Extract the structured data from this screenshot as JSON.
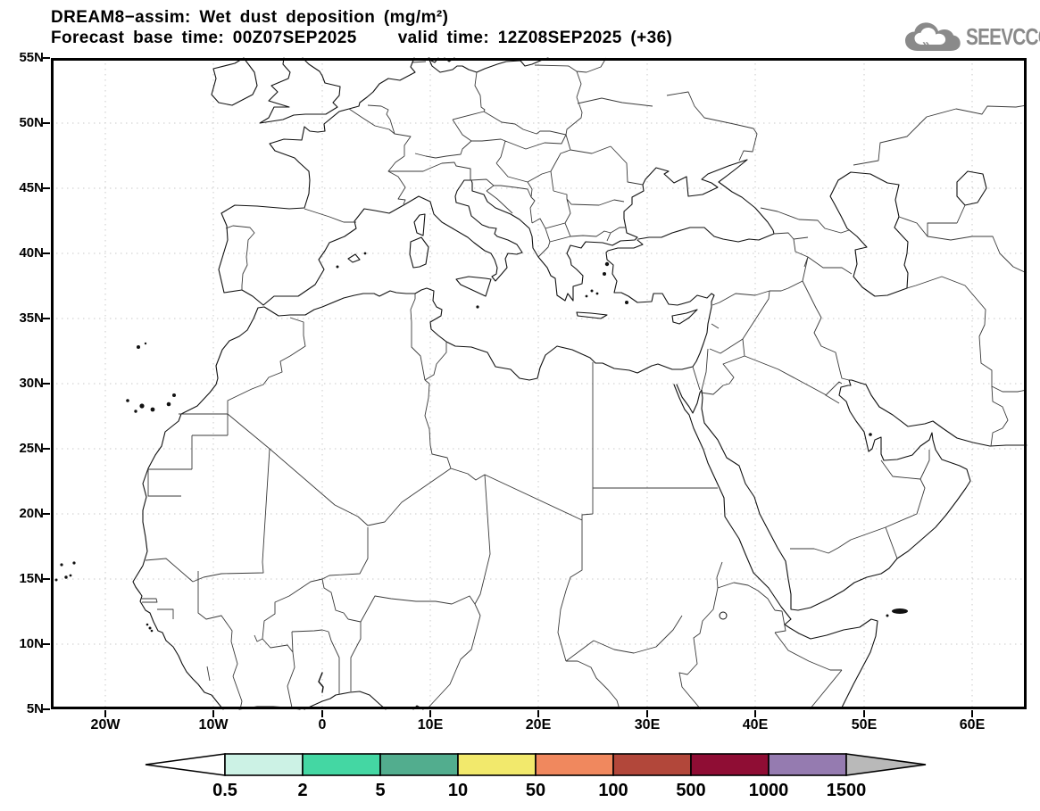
{
  "title": {
    "line1": "DREAM8−assim: Wet dust deposition (mg/m²)",
    "forecast_base": "Forecast base time: 00Z07SEP2025",
    "valid_time": "valid time: 12Z08SEP2025 (+36)"
  },
  "logo": {
    "text": "SEEVCCC"
  },
  "map": {
    "lat_ticks": [
      "55N",
      "50N",
      "45N",
      "40N",
      "35N",
      "30N",
      "25N",
      "20N",
      "15N",
      "10N",
      "5N"
    ],
    "lon_ticks": [
      "20W",
      "10W",
      "0",
      "10E",
      "20E",
      "30E",
      "40E",
      "50E",
      "60E"
    ]
  },
  "colorbar": {
    "values": [
      "0.5",
      "2",
      "5",
      "10",
      "50",
      "100",
      "500",
      "1000",
      "1500"
    ],
    "segment_colors": [
      "#ccf2e5",
      "#44d7a3",
      "#52ad8e",
      "#f2e96c",
      "#f0885e",
      "#b2473a",
      "#8f0d34",
      "#957bb0"
    ],
    "left_arrow_color": "#ffffff",
    "right_arrow_color": "#b9b9b9"
  }
}
